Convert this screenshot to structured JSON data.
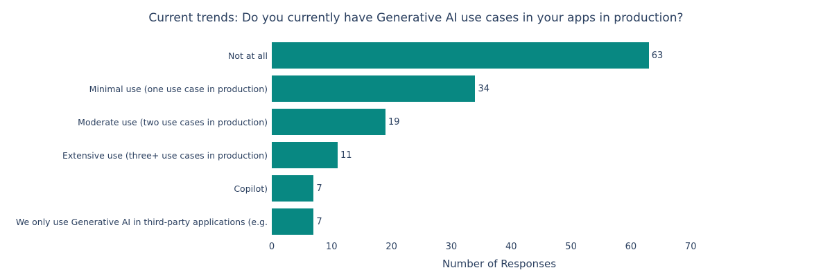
{
  "chart_data": {
    "type": "bar",
    "orientation": "horizontal",
    "title": "Current trends: Do you currently have Generative AI use cases in your apps in production?",
    "categories": [
      "Not at all",
      "Minimal use (one use case in production)",
      "Moderate use (two use cases in production)",
      "Extensive use (three+ use cases in production)",
      "Copilot)",
      "We only use Generative AI in third-party applications (e.g."
    ],
    "values": [
      63,
      34,
      19,
      11,
      7,
      7
    ],
    "value_labels_position": "outside",
    "xlabel": "Number of Responses",
    "ylabel": "",
    "xlim": [
      0,
      76
    ],
    "xticks": [
      0,
      10,
      20,
      30,
      40,
      50,
      60,
      70
    ],
    "grid": false,
    "legend": false,
    "bar_color": "#088882"
  },
  "colors": {
    "text": "#2a3f5f",
    "bar": "#088882",
    "background": "#ffffff"
  }
}
